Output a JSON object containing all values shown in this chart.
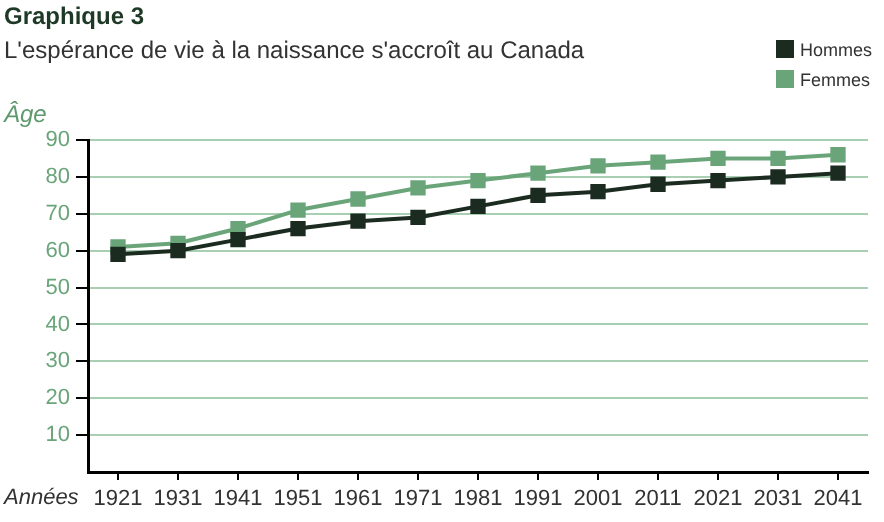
{
  "chart_data": {
    "type": "line",
    "title": "Graphique 3",
    "subtitle": "L'espérance de vie à la naissance s'accroît au Canada",
    "xlabel": "Années",
    "ylabel": "Âge",
    "categories": [
      "1921",
      "1931",
      "1941",
      "1951",
      "1961",
      "1971",
      "1981",
      "1991",
      "2001",
      "2011",
      "2021",
      "2031",
      "2041"
    ],
    "series": [
      {
        "name": "Hommes",
        "color": "#1b2b20",
        "values": [
          59,
          60,
          63,
          66,
          68,
          69,
          72,
          75,
          76,
          78,
          79,
          80,
          81
        ]
      },
      {
        "name": "Femmes",
        "color": "#6aa57a",
        "values": [
          61,
          62,
          66,
          71,
          74,
          77,
          79,
          81,
          83,
          84,
          85,
          85,
          86
        ]
      }
    ],
    "ylim": [
      0,
      90
    ],
    "yticks": [
      10,
      20,
      30,
      40,
      50,
      60,
      70,
      80,
      90
    ],
    "grid": "y",
    "legend": "top right",
    "marker": "square",
    "line_style": "solid"
  }
}
